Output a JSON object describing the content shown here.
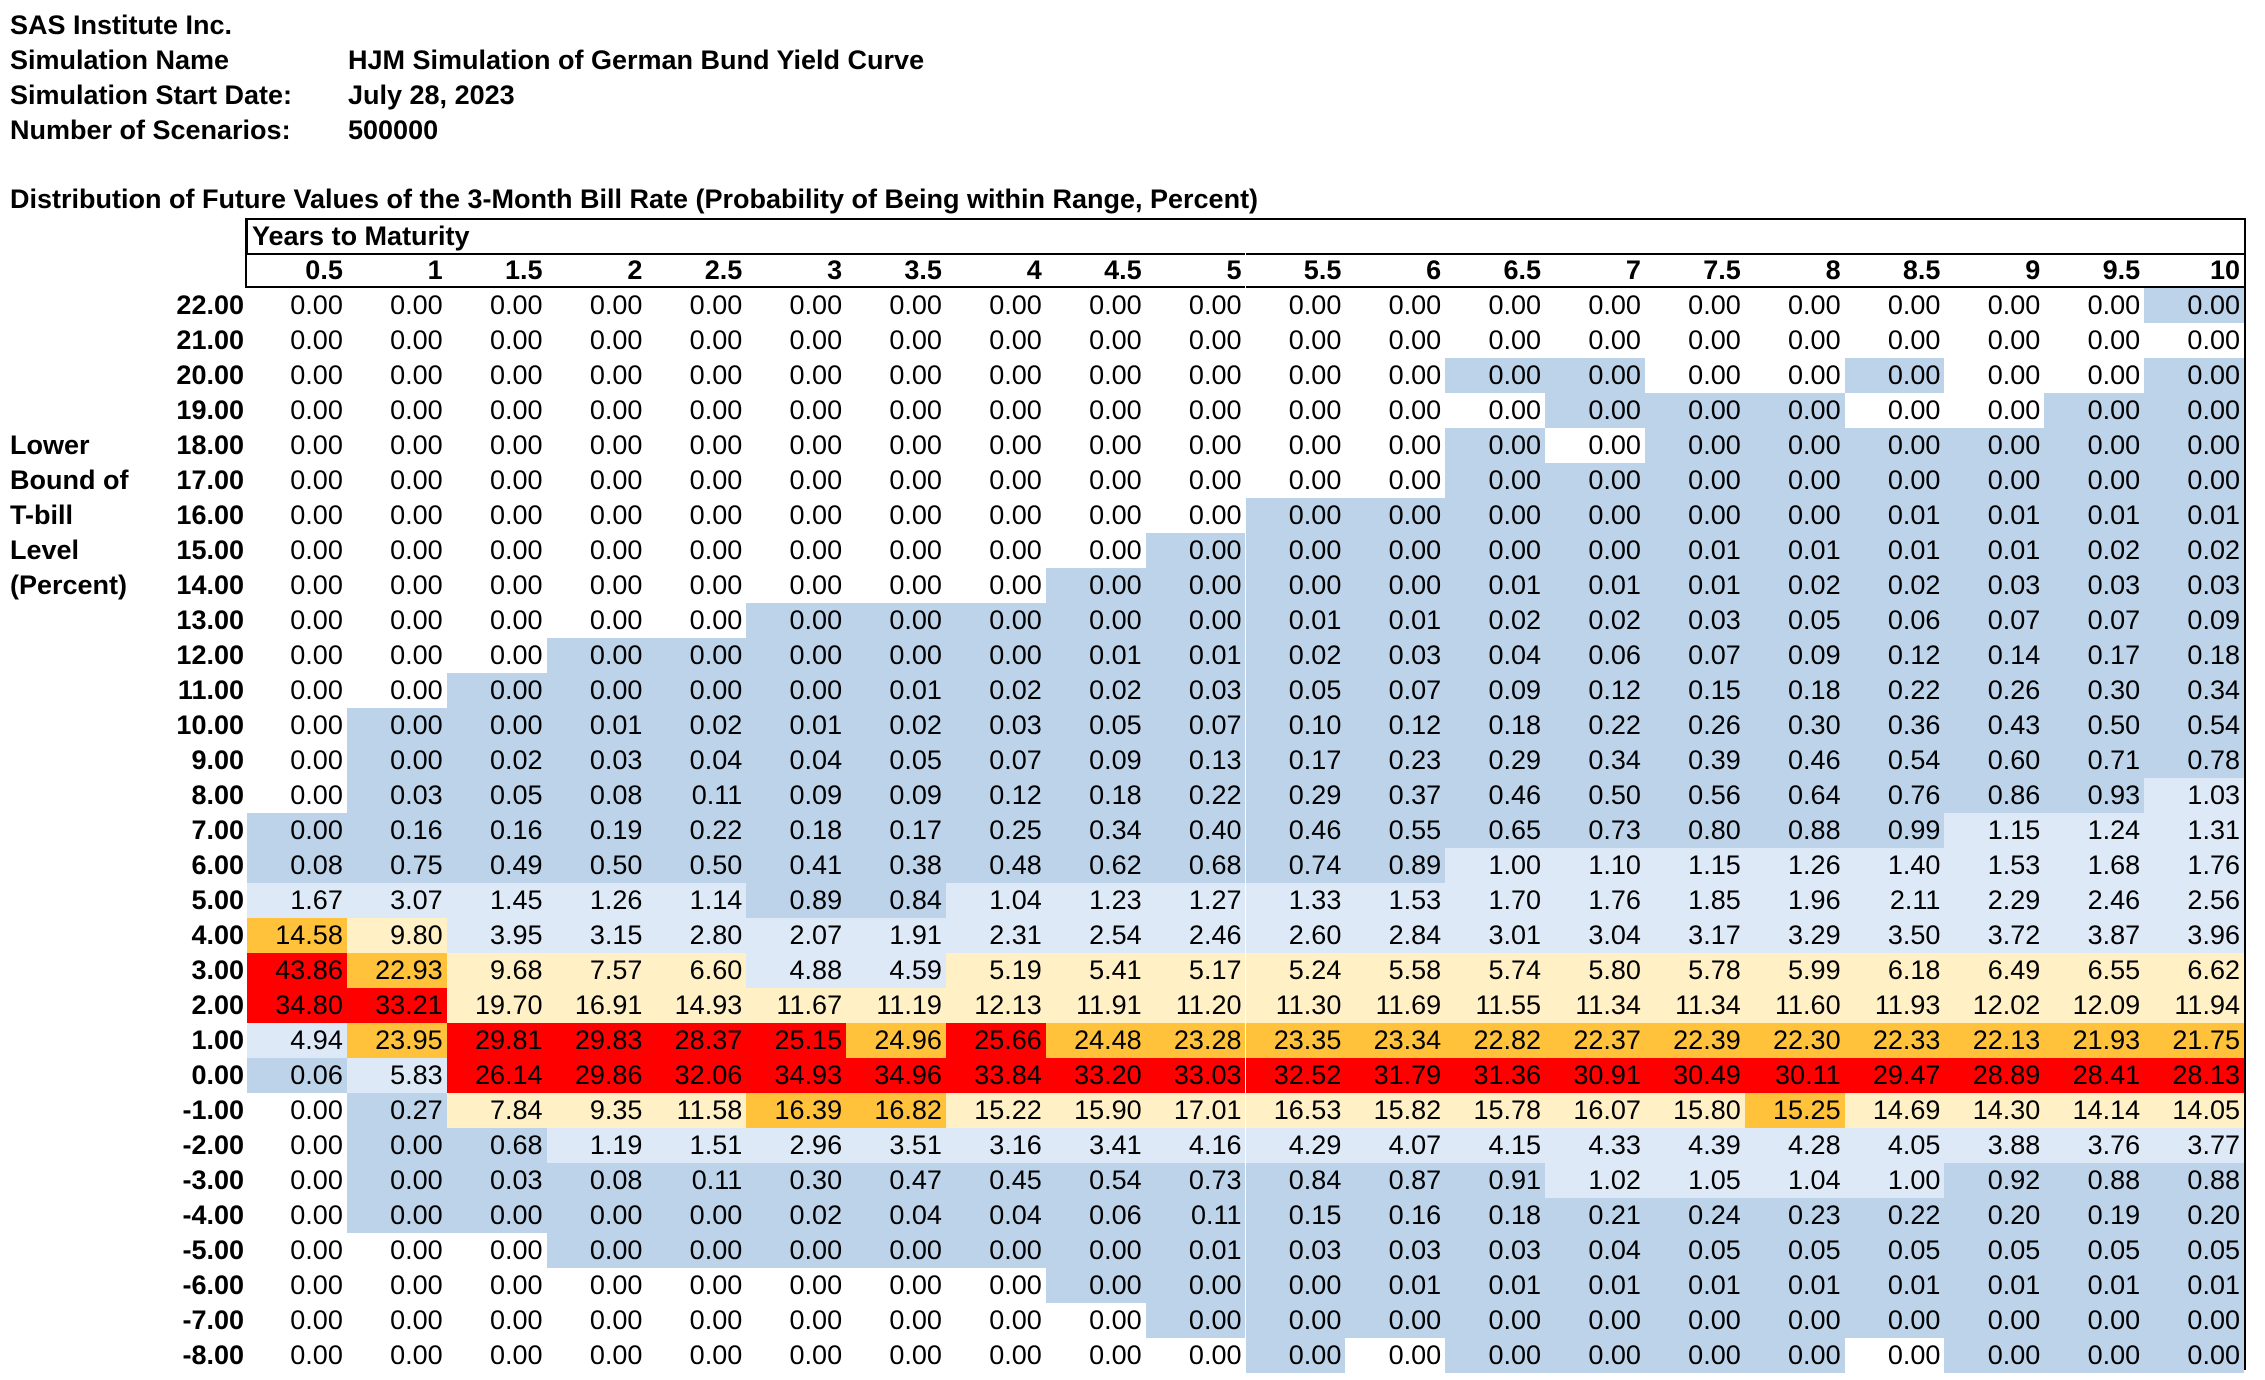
{
  "header": {
    "company": "SAS Institute Inc.",
    "simulation_name_label": "Simulation Name",
    "simulation_name": "HJM Simulation of German Bund Yield Curve",
    "start_date_label": "Simulation Start Date:",
    "start_date": "July 28, 2023",
    "scenarios_label": "Number of Scenarios:",
    "scenarios": "500000"
  },
  "table_title": "Distribution of Future Values of the 3-Month Bill Rate (Probability of Being within Range, Percent)",
  "column_group_title": "Years to Maturity",
  "row_axis_label": [
    "Lower",
    "Bound of",
    "T-bill",
    "Level",
    "(Percent)"
  ],
  "colors": {
    "white": "#ffffff",
    "blue": "#bcd3ea",
    "light_blue": "#dde9f6",
    "cream": "#fff0c6",
    "gold": "#ffc23a",
    "red": "#ff0000"
  },
  "columns": [
    "0.5",
    "1",
    "1.5",
    "2",
    "2.5",
    "3",
    "3.5",
    "4",
    "4.5",
    "5",
    "5.5",
    "6",
    "6.5",
    "7",
    "7.5",
    "8",
    "8.5",
    "9",
    "9.5",
    "10"
  ],
  "rows": [
    {
      "label": "22.00",
      "values": [
        "0.00",
        "0.00",
        "0.00",
        "0.00",
        "0.00",
        "0.00",
        "0.00",
        "0.00",
        "0.00",
        "0.00",
        "0.00",
        "0.00",
        "0.00",
        "0.00",
        "0.00",
        "0.00",
        "0.00",
        "0.00",
        "0.00",
        "0.00"
      ],
      "colors": "WWWWWWWWWWWWWWWWWWWB"
    },
    {
      "label": "21.00",
      "values": [
        "0.00",
        "0.00",
        "0.00",
        "0.00",
        "0.00",
        "0.00",
        "0.00",
        "0.00",
        "0.00",
        "0.00",
        "0.00",
        "0.00",
        "0.00",
        "0.00",
        "0.00",
        "0.00",
        "0.00",
        "0.00",
        "0.00",
        "0.00"
      ],
      "colors": "WWWWWWWWWWWWWWWWWWWW"
    },
    {
      "label": "20.00",
      "values": [
        "0.00",
        "0.00",
        "0.00",
        "0.00",
        "0.00",
        "0.00",
        "0.00",
        "0.00",
        "0.00",
        "0.00",
        "0.00",
        "0.00",
        "0.00",
        "0.00",
        "0.00",
        "0.00",
        "0.00",
        "0.00",
        "0.00",
        "0.00"
      ],
      "colors": "WWWWWWWWWWWWBBWWBWWB"
    },
    {
      "label": "19.00",
      "values": [
        "0.00",
        "0.00",
        "0.00",
        "0.00",
        "0.00",
        "0.00",
        "0.00",
        "0.00",
        "0.00",
        "0.00",
        "0.00",
        "0.00",
        "0.00",
        "0.00",
        "0.00",
        "0.00",
        "0.00",
        "0.00",
        "0.00",
        "0.00"
      ],
      "colors": "WWWWWWWWWWWWWBBBWWBB"
    },
    {
      "label": "18.00",
      "values": [
        "0.00",
        "0.00",
        "0.00",
        "0.00",
        "0.00",
        "0.00",
        "0.00",
        "0.00",
        "0.00",
        "0.00",
        "0.00",
        "0.00",
        "0.00",
        "0.00",
        "0.00",
        "0.00",
        "0.00",
        "0.00",
        "0.00",
        "0.00"
      ],
      "colors": "WWWWWWWWWWWWBWBBBBBB"
    },
    {
      "label": "17.00",
      "values": [
        "0.00",
        "0.00",
        "0.00",
        "0.00",
        "0.00",
        "0.00",
        "0.00",
        "0.00",
        "0.00",
        "0.00",
        "0.00",
        "0.00",
        "0.00",
        "0.00",
        "0.00",
        "0.00",
        "0.00",
        "0.00",
        "0.00",
        "0.00"
      ],
      "colors": "WWWWWWWWWWWWBBBBBBBB"
    },
    {
      "label": "16.00",
      "values": [
        "0.00",
        "0.00",
        "0.00",
        "0.00",
        "0.00",
        "0.00",
        "0.00",
        "0.00",
        "0.00",
        "0.00",
        "0.00",
        "0.00",
        "0.00",
        "0.00",
        "0.00",
        "0.00",
        "0.01",
        "0.01",
        "0.01",
        "0.01"
      ],
      "colors": "WWWWWWWWWWBBBBBBBBBB"
    },
    {
      "label": "15.00",
      "values": [
        "0.00",
        "0.00",
        "0.00",
        "0.00",
        "0.00",
        "0.00",
        "0.00",
        "0.00",
        "0.00",
        "0.00",
        "0.00",
        "0.00",
        "0.00",
        "0.00",
        "0.01",
        "0.01",
        "0.01",
        "0.01",
        "0.02",
        "0.02"
      ],
      "colors": "WWWWWWWWWBBBBBBBBBBB"
    },
    {
      "label": "14.00",
      "values": [
        "0.00",
        "0.00",
        "0.00",
        "0.00",
        "0.00",
        "0.00",
        "0.00",
        "0.00",
        "0.00",
        "0.00",
        "0.00",
        "0.00",
        "0.01",
        "0.01",
        "0.01",
        "0.02",
        "0.02",
        "0.03",
        "0.03",
        "0.03"
      ],
      "colors": "WWWWWWWWBBBBBBBBBBBB"
    },
    {
      "label": "13.00",
      "values": [
        "0.00",
        "0.00",
        "0.00",
        "0.00",
        "0.00",
        "0.00",
        "0.00",
        "0.00",
        "0.00",
        "0.00",
        "0.01",
        "0.01",
        "0.02",
        "0.02",
        "0.03",
        "0.05",
        "0.06",
        "0.07",
        "0.07",
        "0.09"
      ],
      "colors": "WWWWWBBBBBBBBBBBBBBB"
    },
    {
      "label": "12.00",
      "values": [
        "0.00",
        "0.00",
        "0.00",
        "0.00",
        "0.00",
        "0.00",
        "0.00",
        "0.00",
        "0.01",
        "0.01",
        "0.02",
        "0.03",
        "0.04",
        "0.06",
        "0.07",
        "0.09",
        "0.12",
        "0.14",
        "0.17",
        "0.18"
      ],
      "colors": "WWWBBBBBBBBBBBBBBBBB"
    },
    {
      "label": "11.00",
      "values": [
        "0.00",
        "0.00",
        "0.00",
        "0.00",
        "0.00",
        "0.00",
        "0.01",
        "0.02",
        "0.02",
        "0.03",
        "0.05",
        "0.07",
        "0.09",
        "0.12",
        "0.15",
        "0.18",
        "0.22",
        "0.26",
        "0.30",
        "0.34"
      ],
      "colors": "WWBBBBBBBBBBBBBBBBBB"
    },
    {
      "label": "10.00",
      "values": [
        "0.00",
        "0.00",
        "0.00",
        "0.01",
        "0.02",
        "0.01",
        "0.02",
        "0.03",
        "0.05",
        "0.07",
        "0.10",
        "0.12",
        "0.18",
        "0.22",
        "0.26",
        "0.30",
        "0.36",
        "0.43",
        "0.50",
        "0.54"
      ],
      "colors": "WBBBBBBBBBBBBBBBBBBB"
    },
    {
      "label": "9.00",
      "values": [
        "0.00",
        "0.00",
        "0.02",
        "0.03",
        "0.04",
        "0.04",
        "0.05",
        "0.07",
        "0.09",
        "0.13",
        "0.17",
        "0.23",
        "0.29",
        "0.34",
        "0.39",
        "0.46",
        "0.54",
        "0.60",
        "0.71",
        "0.78"
      ],
      "colors": "WBBBBBBBBBBBBBBBBBBB"
    },
    {
      "label": "8.00",
      "values": [
        "0.00",
        "0.03",
        "0.05",
        "0.08",
        "0.11",
        "0.09",
        "0.09",
        "0.12",
        "0.18",
        "0.22",
        "0.29",
        "0.37",
        "0.46",
        "0.50",
        "0.56",
        "0.64",
        "0.76",
        "0.86",
        "0.93",
        "1.03"
      ],
      "colors": "WBBBBBBBBBBBBBBBBBBL"
    },
    {
      "label": "7.00",
      "values": [
        "0.00",
        "0.16",
        "0.16",
        "0.19",
        "0.22",
        "0.18",
        "0.17",
        "0.25",
        "0.34",
        "0.40",
        "0.46",
        "0.55",
        "0.65",
        "0.73",
        "0.80",
        "0.88",
        "0.99",
        "1.15",
        "1.24",
        "1.31"
      ],
      "colors": "BBBBBBBBBBBBBBBBBLLL"
    },
    {
      "label": "6.00",
      "values": [
        "0.08",
        "0.75",
        "0.49",
        "0.50",
        "0.50",
        "0.41",
        "0.38",
        "0.48",
        "0.62",
        "0.68",
        "0.74",
        "0.89",
        "1.00",
        "1.10",
        "1.15",
        "1.26",
        "1.40",
        "1.53",
        "1.68",
        "1.76"
      ],
      "colors": "BBBBBBBBBBBBLLLLLLLL"
    },
    {
      "label": "5.00",
      "values": [
        "1.67",
        "3.07",
        "1.45",
        "1.26",
        "1.14",
        "0.89",
        "0.84",
        "1.04",
        "1.23",
        "1.27",
        "1.33",
        "1.53",
        "1.70",
        "1.76",
        "1.85",
        "1.96",
        "2.11",
        "2.29",
        "2.46",
        "2.56"
      ],
      "colors": "LLLLLBBLLLLLLLLLLLLL"
    },
    {
      "label": "4.00",
      "values": [
        "14.58",
        "9.80",
        "3.95",
        "3.15",
        "2.80",
        "2.07",
        "1.91",
        "2.31",
        "2.54",
        "2.46",
        "2.60",
        "2.84",
        "3.01",
        "3.04",
        "3.17",
        "3.29",
        "3.50",
        "3.72",
        "3.87",
        "3.96"
      ],
      "colors": "GCLLLLLLLLLLLLLLLLLL"
    },
    {
      "label": "3.00",
      "values": [
        "43.86",
        "22.93",
        "9.68",
        "7.57",
        "6.60",
        "4.88",
        "4.59",
        "5.19",
        "5.41",
        "5.17",
        "5.24",
        "5.58",
        "5.74",
        "5.80",
        "5.78",
        "5.99",
        "6.18",
        "6.49",
        "6.55",
        "6.62"
      ],
      "colors": "RGCCCLLCCCCCCCCCCCCC"
    },
    {
      "label": "2.00",
      "values": [
        "34.80",
        "33.21",
        "19.70",
        "16.91",
        "14.93",
        "11.67",
        "11.19",
        "12.13",
        "11.91",
        "11.20",
        "11.30",
        "11.69",
        "11.55",
        "11.34",
        "11.34",
        "11.60",
        "11.93",
        "12.02",
        "12.09",
        "11.94"
      ],
      "colors": "RRCCCCCCCCCCCCCCCCCC"
    },
    {
      "label": "1.00",
      "values": [
        "4.94",
        "23.95",
        "29.81",
        "29.83",
        "28.37",
        "25.15",
        "24.96",
        "25.66",
        "24.48",
        "23.28",
        "23.35",
        "23.34",
        "22.82",
        "22.37",
        "22.39",
        "22.30",
        "22.33",
        "22.13",
        "21.93",
        "21.75"
      ],
      "colors": "LGRRRRGRGGGGGGGGGGGG"
    },
    {
      "label": "0.00",
      "values": [
        "0.06",
        "5.83",
        "26.14",
        "29.86",
        "32.06",
        "34.93",
        "34.96",
        "33.84",
        "33.20",
        "33.03",
        "32.52",
        "31.79",
        "31.36",
        "30.91",
        "30.49",
        "30.11",
        "29.47",
        "28.89",
        "28.41",
        "28.13"
      ],
      "colors": "BLRRRRRRRRRRRRRRRRRR"
    },
    {
      "label": "-1.00",
      "values": [
        "0.00",
        "0.27",
        "7.84",
        "9.35",
        "11.58",
        "16.39",
        "16.82",
        "15.22",
        "15.90",
        "17.01",
        "16.53",
        "15.82",
        "15.78",
        "16.07",
        "15.80",
        "15.25",
        "14.69",
        "14.30",
        "14.14",
        "14.05"
      ],
      "colors": "WBCCCGGCCCCCCCCGCCCC"
    },
    {
      "label": "-2.00",
      "values": [
        "0.00",
        "0.00",
        "0.68",
        "1.19",
        "1.51",
        "2.96",
        "3.51",
        "3.16",
        "3.41",
        "4.16",
        "4.29",
        "4.07",
        "4.15",
        "4.33",
        "4.39",
        "4.28",
        "4.05",
        "3.88",
        "3.76",
        "3.77"
      ],
      "colors": "WBBLLLLLLLLLLLLLLLLL"
    },
    {
      "label": "-3.00",
      "values": [
        "0.00",
        "0.00",
        "0.03",
        "0.08",
        "0.11",
        "0.30",
        "0.47",
        "0.45",
        "0.54",
        "0.73",
        "0.84",
        "0.87",
        "0.91",
        "1.02",
        "1.05",
        "1.04",
        "1.00",
        "0.92",
        "0.88",
        "0.88"
      ],
      "colors": "WBBBBBBBBBBBBLLLLBBB"
    },
    {
      "label": "-4.00",
      "values": [
        "0.00",
        "0.00",
        "0.00",
        "0.00",
        "0.00",
        "0.02",
        "0.04",
        "0.04",
        "0.06",
        "0.11",
        "0.15",
        "0.16",
        "0.18",
        "0.21",
        "0.24",
        "0.23",
        "0.22",
        "0.20",
        "0.19",
        "0.20"
      ],
      "colors": "WBBBBBBBBBBBBBBBBBBB"
    },
    {
      "label": "-5.00",
      "values": [
        "0.00",
        "0.00",
        "0.00",
        "0.00",
        "0.00",
        "0.00",
        "0.00",
        "0.00",
        "0.00",
        "0.01",
        "0.03",
        "0.03",
        "0.03",
        "0.04",
        "0.05",
        "0.05",
        "0.05",
        "0.05",
        "0.05",
        "0.05"
      ],
      "colors": "WWWBBBBBBBBBBBBBBBBB"
    },
    {
      "label": "-6.00",
      "values": [
        "0.00",
        "0.00",
        "0.00",
        "0.00",
        "0.00",
        "0.00",
        "0.00",
        "0.00",
        "0.00",
        "0.00",
        "0.00",
        "0.01",
        "0.01",
        "0.01",
        "0.01",
        "0.01",
        "0.01",
        "0.01",
        "0.01",
        "0.01"
      ],
      "colors": "WWWWWWWWBBBBBBBBBBBB"
    },
    {
      "label": "-7.00",
      "values": [
        "0.00",
        "0.00",
        "0.00",
        "0.00",
        "0.00",
        "0.00",
        "0.00",
        "0.00",
        "0.00",
        "0.00",
        "0.00",
        "0.00",
        "0.00",
        "0.00",
        "0.00",
        "0.00",
        "0.00",
        "0.00",
        "0.00",
        "0.00"
      ],
      "colors": "WWWWWWWWWBBBBBBBBBBB"
    },
    {
      "label": "-8.00",
      "values": [
        "0.00",
        "0.00",
        "0.00",
        "0.00",
        "0.00",
        "0.00",
        "0.00",
        "0.00",
        "0.00",
        "0.00",
        "0.00",
        "0.00",
        "0.00",
        "0.00",
        "0.00",
        "0.00",
        "0.00",
        "0.00",
        "0.00",
        "0.00"
      ],
      "colors": "WWWWWWWWWWBWBBBBWBBB"
    }
  ]
}
